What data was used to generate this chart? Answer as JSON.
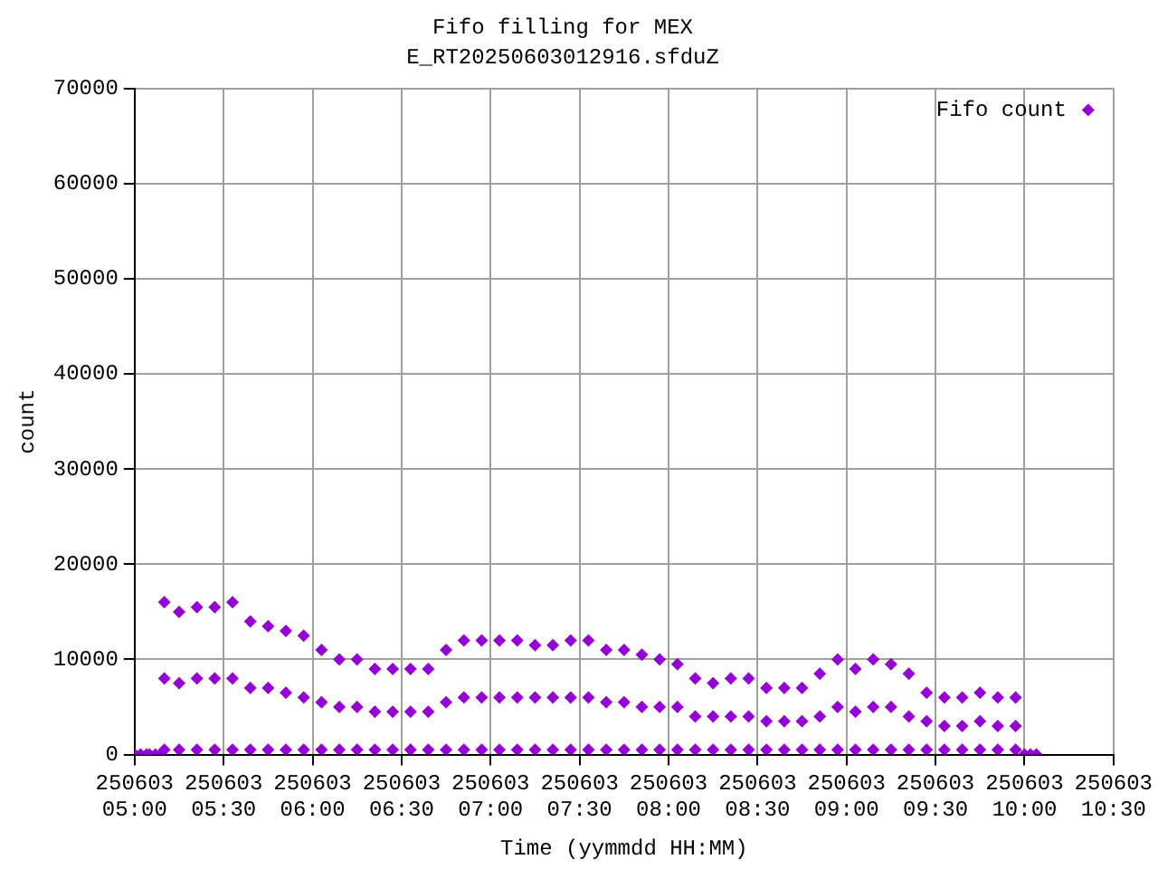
{
  "chart_data": {
    "type": "scatter",
    "title": "Fifo filling for MEX",
    "subtitle": "E_RT20250603012916.sfduZ",
    "xlabel": "Time (yymmdd HH:MM)",
    "ylabel": "count",
    "xlim": [
      "2025-06-03T05:00",
      "2025-06-03T10:30"
    ],
    "xticks": [
      {
        "value": "2025-06-03T05:00",
        "label": "250603 05:00"
      },
      {
        "value": "2025-06-03T05:30",
        "label": "250603 05:30"
      },
      {
        "value": "2025-06-03T06:00",
        "label": "250603 06:00"
      },
      {
        "value": "2025-06-03T06:30",
        "label": "250603 06:30"
      },
      {
        "value": "2025-06-03T07:00",
        "label": "250603 07:00"
      },
      {
        "value": "2025-06-03T07:30",
        "label": "250603 07:30"
      },
      {
        "value": "2025-06-03T08:00",
        "label": "250603 08:00"
      },
      {
        "value": "2025-06-03T08:30",
        "label": "250603 08:30"
      },
      {
        "value": "2025-06-03T09:00",
        "label": "250603 09:00"
      },
      {
        "value": "2025-06-03T09:30",
        "label": "250603 09:30"
      },
      {
        "value": "2025-06-03T10:00",
        "label": "250603 10:00"
      },
      {
        "value": "2025-06-03T10:30",
        "label": "250603 10:30"
      }
    ],
    "ylim": [
      0,
      70000
    ],
    "yticks": [
      0,
      10000,
      20000,
      30000,
      40000,
      50000,
      60000,
      70000
    ],
    "grid": true,
    "legend": "top right",
    "marker": "diamond",
    "series": [
      {
        "name": "Fifo count",
        "color": "#9400d3",
        "x": [
          "2025-06-03T05:00",
          "2025-06-03T05:02",
          "2025-06-03T05:04",
          "2025-06-03T05:05",
          "2025-06-03T05:07",
          "2025-06-03T05:09",
          "2025-06-03T05:10",
          "2025-06-03T05:10",
          "2025-06-03T05:10",
          "2025-06-03T05:15",
          "2025-06-03T05:15",
          "2025-06-03T05:15",
          "2025-06-03T05:21",
          "2025-06-03T05:21",
          "2025-06-03T05:21",
          "2025-06-03T05:27",
          "2025-06-03T05:27",
          "2025-06-03T05:27",
          "2025-06-03T05:33",
          "2025-06-03T05:33",
          "2025-06-03T05:33",
          "2025-06-03T05:39",
          "2025-06-03T05:39",
          "2025-06-03T05:39",
          "2025-06-03T05:45",
          "2025-06-03T05:45",
          "2025-06-03T05:45",
          "2025-06-03T05:51",
          "2025-06-03T05:51",
          "2025-06-03T05:51",
          "2025-06-03T05:57",
          "2025-06-03T05:57",
          "2025-06-03T05:57",
          "2025-06-03T06:03",
          "2025-06-03T06:03",
          "2025-06-03T06:03",
          "2025-06-03T06:09",
          "2025-06-03T06:09",
          "2025-06-03T06:09",
          "2025-06-03T06:15",
          "2025-06-03T06:15",
          "2025-06-03T06:15",
          "2025-06-03T06:21",
          "2025-06-03T06:21",
          "2025-06-03T06:21",
          "2025-06-03T06:27",
          "2025-06-03T06:27",
          "2025-06-03T06:27",
          "2025-06-03T06:33",
          "2025-06-03T06:33",
          "2025-06-03T06:33",
          "2025-06-03T06:39",
          "2025-06-03T06:39",
          "2025-06-03T06:39",
          "2025-06-03T06:45",
          "2025-06-03T06:45",
          "2025-06-03T06:45",
          "2025-06-03T06:51",
          "2025-06-03T06:51",
          "2025-06-03T06:51",
          "2025-06-03T06:57",
          "2025-06-03T06:57",
          "2025-06-03T06:57",
          "2025-06-03T07:03",
          "2025-06-03T07:03",
          "2025-06-03T07:03",
          "2025-06-03T07:09",
          "2025-06-03T07:09",
          "2025-06-03T07:09",
          "2025-06-03T07:15",
          "2025-06-03T07:15",
          "2025-06-03T07:15",
          "2025-06-03T07:21",
          "2025-06-03T07:21",
          "2025-06-03T07:21",
          "2025-06-03T07:27",
          "2025-06-03T07:27",
          "2025-06-03T07:27",
          "2025-06-03T07:33",
          "2025-06-03T07:33",
          "2025-06-03T07:33",
          "2025-06-03T07:39",
          "2025-06-03T07:39",
          "2025-06-03T07:39",
          "2025-06-03T07:45",
          "2025-06-03T07:45",
          "2025-06-03T07:45",
          "2025-06-03T07:51",
          "2025-06-03T07:51",
          "2025-06-03T07:51",
          "2025-06-03T07:57",
          "2025-06-03T07:57",
          "2025-06-03T07:57",
          "2025-06-03T08:03",
          "2025-06-03T08:03",
          "2025-06-03T08:03",
          "2025-06-03T08:09",
          "2025-06-03T08:09",
          "2025-06-03T08:09",
          "2025-06-03T08:15",
          "2025-06-03T08:15",
          "2025-06-03T08:15",
          "2025-06-03T08:21",
          "2025-06-03T08:21",
          "2025-06-03T08:21",
          "2025-06-03T08:27",
          "2025-06-03T08:27",
          "2025-06-03T08:27",
          "2025-06-03T08:33",
          "2025-06-03T08:33",
          "2025-06-03T08:33",
          "2025-06-03T08:39",
          "2025-06-03T08:39",
          "2025-06-03T08:39",
          "2025-06-03T08:45",
          "2025-06-03T08:45",
          "2025-06-03T08:45",
          "2025-06-03T08:51",
          "2025-06-03T08:51",
          "2025-06-03T08:51",
          "2025-06-03T08:57",
          "2025-06-03T08:57",
          "2025-06-03T08:57",
          "2025-06-03T09:03",
          "2025-06-03T09:03",
          "2025-06-03T09:03",
          "2025-06-03T09:09",
          "2025-06-03T09:09",
          "2025-06-03T09:09",
          "2025-06-03T09:15",
          "2025-06-03T09:15",
          "2025-06-03T09:15",
          "2025-06-03T09:21",
          "2025-06-03T09:21",
          "2025-06-03T09:21",
          "2025-06-03T09:27",
          "2025-06-03T09:27",
          "2025-06-03T09:27",
          "2025-06-03T09:33",
          "2025-06-03T09:33",
          "2025-06-03T09:33",
          "2025-06-03T09:39",
          "2025-06-03T09:39",
          "2025-06-03T09:39",
          "2025-06-03T09:45",
          "2025-06-03T09:45",
          "2025-06-03T09:45",
          "2025-06-03T09:51",
          "2025-06-03T09:51",
          "2025-06-03T09:51",
          "2025-06-03T09:57",
          "2025-06-03T09:57",
          "2025-06-03T09:57",
          "2025-06-03T10:00",
          "2025-06-03T10:02",
          "2025-06-03T10:04"
        ],
        "values": [
          0,
          0,
          0,
          0,
          0,
          0,
          16000,
          8000,
          500,
          15000,
          7500,
          500,
          15500,
          8000,
          500,
          15500,
          8000,
          500,
          16000,
          8000,
          500,
          14000,
          7000,
          500,
          13500,
          7000,
          500,
          13000,
          6500,
          500,
          12500,
          6000,
          500,
          11000,
          5500,
          500,
          10000,
          5000,
          500,
          10000,
          5000,
          500,
          9000,
          4500,
          500,
          9000,
          4500,
          500,
          9000,
          4500,
          500,
          9000,
          4500,
          500,
          11000,
          5500,
          500,
          12000,
          6000,
          500,
          12000,
          6000,
          500,
          12000,
          6000,
          500,
          12000,
          6000,
          500,
          11500,
          6000,
          500,
          11500,
          6000,
          500,
          12000,
          6000,
          500,
          12000,
          6000,
          500,
          11000,
          5500,
          500,
          11000,
          5500,
          500,
          10500,
          5000,
          500,
          10000,
          5000,
          500,
          9500,
          5000,
          500,
          8000,
          4000,
          500,
          7500,
          4000,
          500,
          8000,
          4000,
          500,
          8000,
          4000,
          500,
          7000,
          3500,
          500,
          7000,
          3500,
          500,
          7000,
          3500,
          500,
          8500,
          4000,
          500,
          10000,
          5000,
          500,
          9000,
          4500,
          500,
          10000,
          5000,
          500,
          9500,
          5000,
          500,
          8500,
          4000,
          500,
          6500,
          3500,
          500,
          6000,
          3000,
          500,
          6000,
          3000,
          500,
          6500,
          3500,
          500,
          6000,
          3000,
          500,
          6000,
          3000,
          500,
          0,
          0,
          0
        ]
      }
    ]
  }
}
